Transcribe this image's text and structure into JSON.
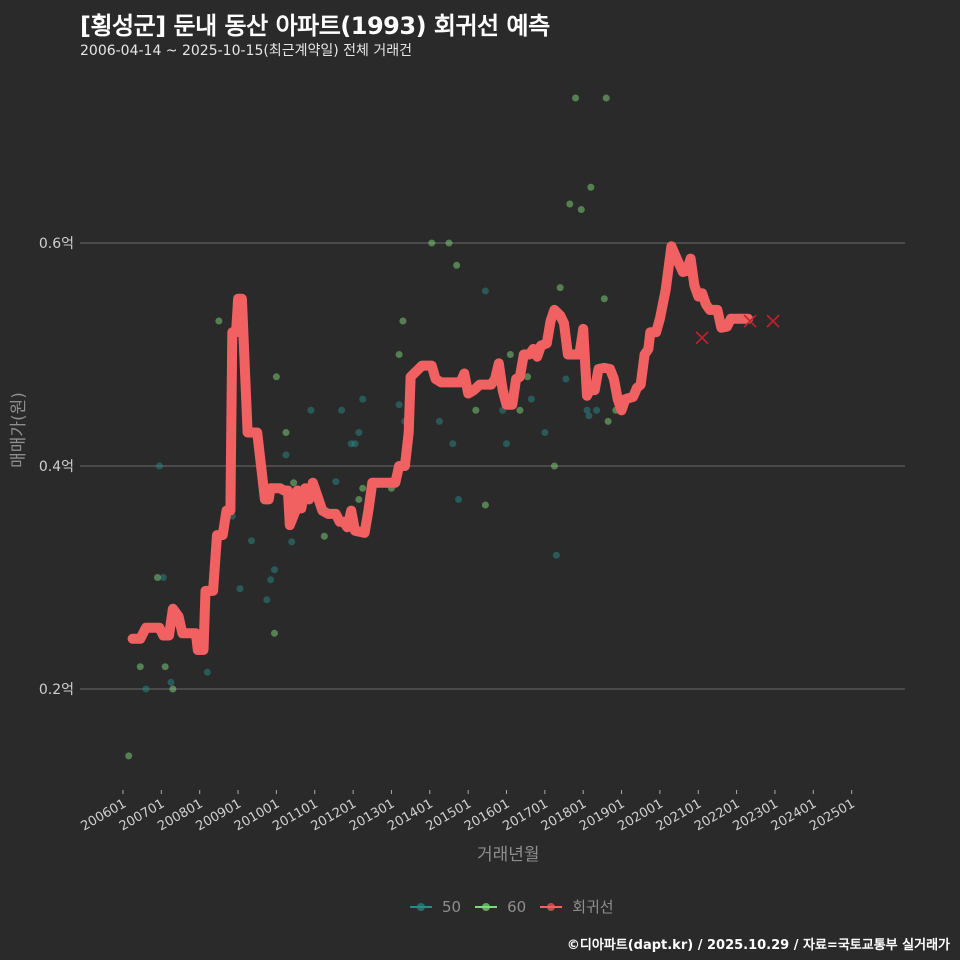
{
  "header": {
    "title": "[횡성군] 둔내 동산 아파트(1993) 회귀선 예측",
    "subtitle": "2006-04-14 ~ 2025-10-15(최근계약일) 전체 거래건"
  },
  "axes": {
    "y_label": "매매가(원)",
    "x_label": "거래년월",
    "y_ticks": [
      "0.6억",
      "0.4억",
      "0.2억"
    ]
  },
  "legend": {
    "items": [
      {
        "label": "50",
        "color": "#2a8a86"
      },
      {
        "label": "60",
        "color": "#7fd87a"
      },
      {
        "label": "회귀선",
        "color": "#f26161"
      }
    ]
  },
  "footer": {
    "credit": "©디아파트(dapt.kr) / 2025.10.29 / 자료=국토교통부 실거래가"
  },
  "chart_data": {
    "type": "line",
    "title": "[횡성군] 둔내 동산 아파트(1993) 회귀선 예측",
    "subtitle": "2006-04-14 ~ 2025-10-15(최근계약일) 전체 거래건",
    "xlabel": "거래년월",
    "ylabel": "매매가(원)",
    "ylim": [
      0.11,
      0.75
    ],
    "y_unit": "억",
    "y_ticks": [
      0.2,
      0.4,
      0.6
    ],
    "x_ticks": [
      "200601",
      "200701",
      "200801",
      "200901",
      "201001",
      "201101",
      "201201",
      "201301",
      "201401",
      "201501",
      "201601",
      "201701",
      "201801",
      "201901",
      "202001",
      "202101",
      "202201",
      "202301",
      "202401",
      "202501"
    ],
    "grid": "horizontal",
    "legend_position": "bottom",
    "regression_line": {
      "name": "회귀선",
      "color": "#f26161",
      "points": [
        [
          2006.25,
          0.245
        ],
        [
          2006.45,
          0.245
        ],
        [
          2006.6,
          0.255
        ],
        [
          2006.95,
          0.255
        ],
        [
          2007.05,
          0.248
        ],
        [
          2007.2,
          0.248
        ],
        [
          2007.3,
          0.272
        ],
        [
          2007.45,
          0.265
        ],
        [
          2007.55,
          0.25
        ],
        [
          2007.9,
          0.25
        ],
        [
          2007.95,
          0.235
        ],
        [
          2008.1,
          0.235
        ],
        [
          2008.15,
          0.288
        ],
        [
          2008.35,
          0.288
        ],
        [
          2008.45,
          0.338
        ],
        [
          2008.6,
          0.338
        ],
        [
          2008.7,
          0.36
        ],
        [
          2008.8,
          0.36
        ],
        [
          2008.85,
          0.52
        ],
        [
          2008.95,
          0.52
        ],
        [
          2009.0,
          0.55
        ],
        [
          2009.1,
          0.55
        ],
        [
          2009.25,
          0.43
        ],
        [
          2009.5,
          0.43
        ],
        [
          2009.7,
          0.37
        ],
        [
          2009.8,
          0.37
        ],
        [
          2009.85,
          0.38
        ],
        [
          2010.1,
          0.38
        ],
        [
          2010.2,
          0.378
        ],
        [
          2010.3,
          0.378
        ],
        [
          2010.35,
          0.347
        ],
        [
          2010.5,
          0.36
        ],
        [
          2010.55,
          0.378
        ],
        [
          2010.65,
          0.362
        ],
        [
          2010.75,
          0.38
        ],
        [
          2010.85,
          0.37
        ],
        [
          2010.95,
          0.385
        ],
        [
          2011.05,
          0.375
        ],
        [
          2011.2,
          0.36
        ],
        [
          2011.35,
          0.357
        ],
        [
          2011.55,
          0.357
        ],
        [
          2011.65,
          0.35
        ],
        [
          2011.75,
          0.35
        ],
        [
          2011.85,
          0.345
        ],
        [
          2011.95,
          0.36
        ],
        [
          2012.05,
          0.342
        ],
        [
          2012.3,
          0.34
        ],
        [
          2012.4,
          0.36
        ],
        [
          2012.5,
          0.385
        ],
        [
          2013.1,
          0.385
        ],
        [
          2013.2,
          0.4
        ],
        [
          2013.35,
          0.4
        ],
        [
          2013.45,
          0.43
        ],
        [
          2013.5,
          0.48
        ],
        [
          2013.65,
          0.485
        ],
        [
          2013.8,
          0.49
        ],
        [
          2014.05,
          0.49
        ],
        [
          2014.15,
          0.478
        ],
        [
          2014.3,
          0.475
        ],
        [
          2014.8,
          0.475
        ],
        [
          2014.9,
          0.483
        ],
        [
          2015.0,
          0.465
        ],
        [
          2015.15,
          0.468
        ],
        [
          2015.3,
          0.473
        ],
        [
          2015.6,
          0.473
        ],
        [
          2015.7,
          0.478
        ],
        [
          2015.8,
          0.492
        ],
        [
          2015.9,
          0.468
        ],
        [
          2016.0,
          0.455
        ],
        [
          2016.15,
          0.455
        ],
        [
          2016.25,
          0.478
        ],
        [
          2016.35,
          0.48
        ],
        [
          2016.45,
          0.5
        ],
        [
          2016.6,
          0.5
        ],
        [
          2016.7,
          0.505
        ],
        [
          2016.8,
          0.498
        ],
        [
          2016.9,
          0.508
        ],
        [
          2017.05,
          0.51
        ],
        [
          2017.15,
          0.53
        ],
        [
          2017.25,
          0.54
        ],
        [
          2017.4,
          0.535
        ],
        [
          2017.5,
          0.528
        ],
        [
          2017.6,
          0.5
        ],
        [
          2017.9,
          0.5
        ],
        [
          2018.0,
          0.523
        ],
        [
          2018.1,
          0.463
        ],
        [
          2018.2,
          0.47
        ],
        [
          2018.3,
          0.468
        ],
        [
          2018.4,
          0.487
        ],
        [
          2018.55,
          0.488
        ],
        [
          2018.7,
          0.487
        ],
        [
          2018.8,
          0.478
        ],
        [
          2018.9,
          0.46
        ],
        [
          2019.0,
          0.45
        ],
        [
          2019.1,
          0.46
        ],
        [
          2019.3,
          0.462
        ],
        [
          2019.4,
          0.47
        ],
        [
          2019.5,
          0.473
        ],
        [
          2019.6,
          0.5
        ],
        [
          2019.7,
          0.505
        ],
        [
          2019.75,
          0.52
        ],
        [
          2019.9,
          0.52
        ],
        [
          2020.0,
          0.532
        ],
        [
          2020.15,
          0.558
        ],
        [
          2020.3,
          0.597
        ],
        [
          2020.45,
          0.585
        ],
        [
          2020.6,
          0.574
        ],
        [
          2020.7,
          0.575
        ],
        [
          2020.8,
          0.586
        ],
        [
          2020.9,
          0.562
        ],
        [
          2021.0,
          0.552
        ],
        [
          2021.1,
          0.555
        ],
        [
          2021.2,
          0.545
        ],
        [
          2021.3,
          0.54
        ],
        [
          2021.5,
          0.54
        ],
        [
          2021.6,
          0.524
        ],
        [
          2021.75,
          0.525
        ],
        [
          2021.85,
          0.532
        ],
        [
          2022.3,
          0.532
        ]
      ]
    },
    "series": [
      {
        "name": "50",
        "color": "#2a8a86",
        "points": [
          [
            2006.6,
            0.2
          ],
          [
            2006.95,
            0.4
          ],
          [
            2007.05,
            0.3
          ],
          [
            2007.25,
            0.206
          ],
          [
            2008.2,
            0.215
          ],
          [
            2008.85,
            0.355
          ],
          [
            2009.05,
            0.29
          ],
          [
            2009.35,
            0.333
          ],
          [
            2009.75,
            0.28
          ],
          [
            2009.85,
            0.298
          ],
          [
            2009.95,
            0.307
          ],
          [
            2010.25,
            0.41
          ],
          [
            2010.4,
            0.332
          ],
          [
            2010.9,
            0.45
          ],
          [
            2011.55,
            0.386
          ],
          [
            2011.7,
            0.45
          ],
          [
            2011.95,
            0.42
          ],
          [
            2012.05,
            0.42
          ],
          [
            2012.15,
            0.43
          ],
          [
            2012.25,
            0.46
          ],
          [
            2013.2,
            0.455
          ],
          [
            2013.35,
            0.44
          ],
          [
            2014.25,
            0.44
          ],
          [
            2014.6,
            0.42
          ],
          [
            2014.75,
            0.37
          ],
          [
            2015.45,
            0.557
          ],
          [
            2015.9,
            0.45
          ],
          [
            2016.0,
            0.42
          ],
          [
            2016.65,
            0.46
          ],
          [
            2017.0,
            0.43
          ],
          [
            2017.3,
            0.32
          ],
          [
            2017.55,
            0.478
          ],
          [
            2018.1,
            0.45
          ],
          [
            2018.15,
            0.445
          ],
          [
            2018.35,
            0.45
          ]
        ]
      },
      {
        "name": "60",
        "color": "#7fd87a",
        "points": [
          [
            2006.15,
            0.14
          ],
          [
            2006.45,
            0.22
          ],
          [
            2006.9,
            0.3
          ],
          [
            2007.1,
            0.22
          ],
          [
            2007.3,
            0.2
          ],
          [
            2008.5,
            0.53
          ],
          [
            2009.5,
            0.43
          ],
          [
            2009.95,
            0.25
          ],
          [
            2010.0,
            0.48
          ],
          [
            2010.25,
            0.43
          ],
          [
            2010.45,
            0.385
          ],
          [
            2011.25,
            0.337
          ],
          [
            2012.15,
            0.37
          ],
          [
            2012.25,
            0.38
          ],
          [
            2013.0,
            0.38
          ],
          [
            2013.2,
            0.5
          ],
          [
            2013.3,
            0.53
          ],
          [
            2014.05,
            0.6
          ],
          [
            2014.5,
            0.6
          ],
          [
            2014.7,
            0.58
          ],
          [
            2015.2,
            0.45
          ],
          [
            2015.45,
            0.365
          ],
          [
            2016.1,
            0.5
          ],
          [
            2016.15,
            0.46
          ],
          [
            2016.25,
            0.47
          ],
          [
            2016.35,
            0.45
          ],
          [
            2016.55,
            0.48
          ],
          [
            2017.25,
            0.4
          ],
          [
            2017.4,
            0.56
          ],
          [
            2017.65,
            0.635
          ],
          [
            2017.8,
            0.73
          ],
          [
            2017.95,
            0.63
          ],
          [
            2018.2,
            0.65
          ],
          [
            2018.55,
            0.55
          ],
          [
            2018.6,
            0.73
          ],
          [
            2018.65,
            0.44
          ],
          [
            2018.85,
            0.45
          ]
        ]
      }
    ],
    "highlight_markers": [
      {
        "x": 2021.1,
        "y": 0.515
      },
      {
        "x": 2022.35,
        "y": 0.53
      },
      {
        "x": 2022.95,
        "y": 0.53
      }
    ]
  }
}
